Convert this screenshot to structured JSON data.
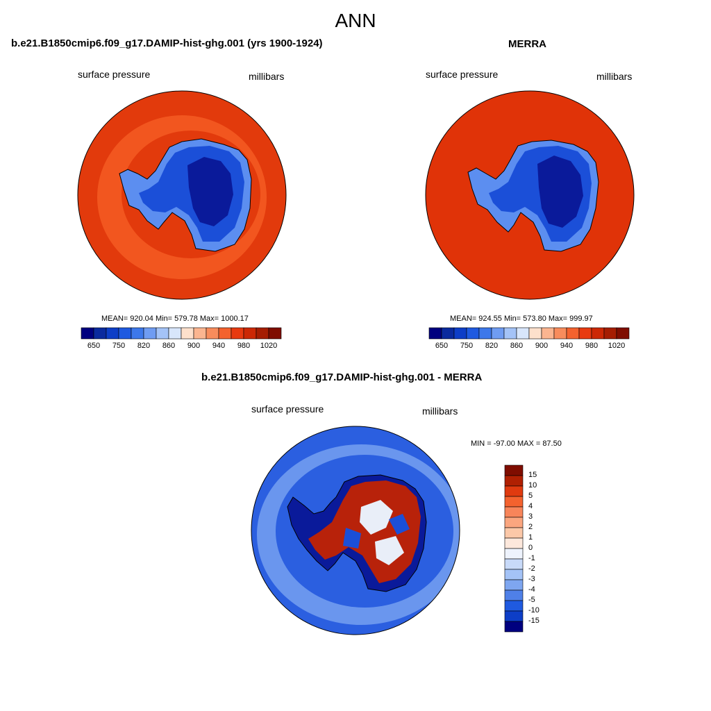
{
  "title": "ANN",
  "panels": [
    {
      "case_title": "b.e21.B1850cmip6.f09_g17.DAMIP-hist-ghg.001 (yrs 1900-1924)",
      "variable": "surface pressure",
      "units": "millibars",
      "stats": "MEAN= 920.04  Min= 579.78  Max= 1000.17"
    },
    {
      "case_title": "MERRA",
      "variable": "surface pressure",
      "units": "millibars",
      "stats": "MEAN= 924.55  Min= 573.80  Max= 999.97"
    },
    {
      "case_title": "b.e21.B1850cmip6.f09_g17.DAMIP-hist-ghg.001 - MERRA",
      "variable": "surface pressure",
      "units": "millibars",
      "stats": "MIN = -97.00 MAX =  87.50"
    }
  ],
  "colorbar_main": {
    "tick_labels": [
      "650",
      "750",
      "820",
      "860",
      "900",
      "940",
      "980",
      "1020"
    ],
    "colors": [
      "#00007f",
      "#0a2a9e",
      "#0d3ec7",
      "#1f5ae0",
      "#3d78ea",
      "#6f9cf2",
      "#a4c3f7",
      "#d8e6fb",
      "#fde0cc",
      "#fbb590",
      "#f88c5c",
      "#f4622e",
      "#e83a10",
      "#cc2805",
      "#a51d02",
      "#7f0d00"
    ]
  },
  "colorbar_diff": {
    "tick_labels": [
      "15",
      "10",
      "5",
      "4",
      "3",
      "2",
      "1",
      "0",
      "-1",
      "-2",
      "-3",
      "-4",
      "-5",
      "-10",
      "-15"
    ],
    "colors": [
      "#7f0d00",
      "#b02002",
      "#e03a0f",
      "#f4622e",
      "#f8855a",
      "#fba67f",
      "#fcc8a8",
      "#fde8dc",
      "#eef3fd",
      "#c8daf9",
      "#a4c3f7",
      "#7ea6f0",
      "#4f80e8",
      "#1f5ae0",
      "#0d3ec7",
      "#00007f"
    ]
  },
  "legend_colors": {
    "ocean_model": "#e23a0c",
    "ocean_ring": "#f2561f",
    "ocean_obs": "#e03308",
    "ice_deep": "#0a1a9a",
    "ice_mid": "#1b4fd8",
    "ice_edge": "#5c8ef0",
    "diff_ocean": "#2b5fe0",
    "diff_ocean_light": "#6a96ee"
  }
}
